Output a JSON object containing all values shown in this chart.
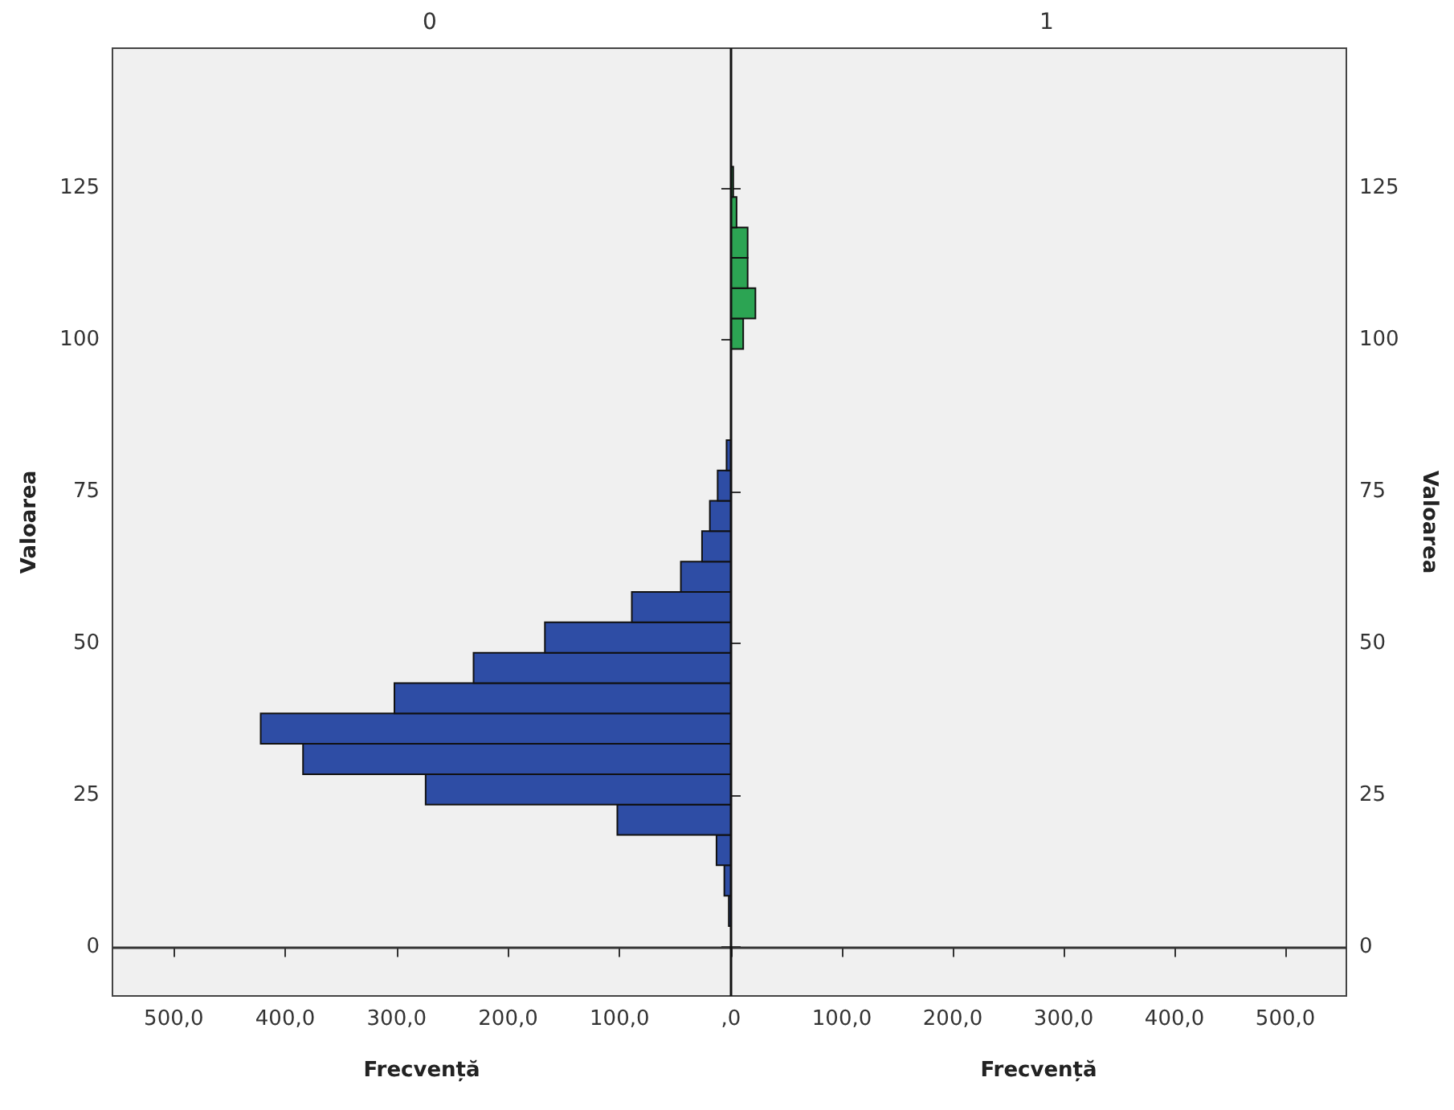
{
  "chart_data": [
    {
      "type": "histogram",
      "orientation": "horizontal",
      "title": "0",
      "xlabel": "Frecvență",
      "ylabel": "Valoarea",
      "color": "#2e4da5",
      "bins": [
        3.5,
        8.5,
        13.5,
        18.5,
        23.5,
        28.5,
        33.5,
        38.5,
        43.5,
        48.5,
        53.5,
        58.5,
        63.5,
        68.5,
        73.5,
        78.5,
        83.5,
        88.5,
        93.5,
        98.5
      ],
      "values": [
        2,
        6,
        13,
        102,
        274,
        384,
        422,
        302,
        231,
        167,
        89,
        45,
        26,
        19,
        12,
        4,
        null,
        null,
        null
      ],
      "xlim": [
        555,
        0
      ],
      "xticks": [
        {
          "value": 500,
          "label": "500,0"
        },
        {
          "value": 400,
          "label": "400,0"
        },
        {
          "value": 300,
          "label": "300,0"
        },
        {
          "value": 200,
          "label": "200,0"
        },
        {
          "value": 100,
          "label": "100,0"
        },
        {
          "value": 0,
          "label": ",0"
        }
      ],
      "ylim": [
        -8,
        148
      ],
      "yticks": [
        0,
        25,
        50,
        75,
        100,
        125
      ],
      "ref_lines": [
        {
          "axis": "y",
          "value": 0,
          "color": "#333333"
        }
      ],
      "grid": false
    },
    {
      "type": "histogram",
      "orientation": "horizontal",
      "title": "1",
      "xlabel": "Frecvență",
      "ylabel": "Valoarea",
      "color": "#2ca453",
      "bins": [
        98.5,
        103.5,
        108.5,
        113.5,
        118.5,
        123.5,
        128.5,
        133.5
      ],
      "values": [
        11,
        22,
        15,
        15,
        5,
        2,
        null
      ],
      "xlim": [
        0,
        555
      ],
      "xticks": [
        {
          "value": 0,
          "label": null
        },
        {
          "value": 100,
          "label": "100,0"
        },
        {
          "value": 200,
          "label": "200,0"
        },
        {
          "value": 300,
          "label": "300,0"
        },
        {
          "value": 400,
          "label": "400,0"
        },
        {
          "value": 500,
          "label": "500,0"
        }
      ],
      "ylim": [
        -8,
        148
      ],
      "yticks": [
        0,
        25,
        50,
        75,
        100,
        125
      ],
      "ref_lines": [
        {
          "axis": "y",
          "value": 0,
          "color": "#333333"
        }
      ],
      "grid": false
    }
  ]
}
